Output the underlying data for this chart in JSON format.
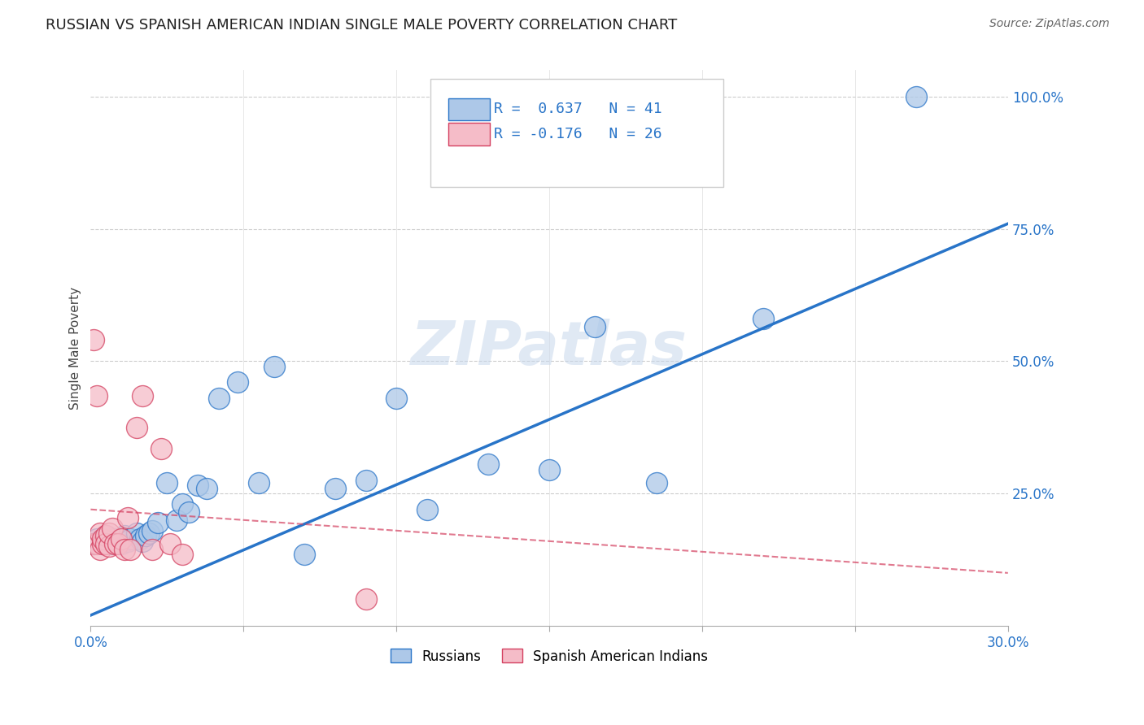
{
  "title": "RUSSIAN VS SPANISH AMERICAN INDIAN SINGLE MALE POVERTY CORRELATION CHART",
  "source": "Source: ZipAtlas.com",
  "ylabel": "Single Male Poverty",
  "x_range": [
    0.0,
    0.3
  ],
  "y_range": [
    0.0,
    1.05
  ],
  "russian_R": 0.637,
  "russian_N": 41,
  "spanish_R": -0.176,
  "spanish_N": 26,
  "russian_color": "#adc8e8",
  "russian_line_color": "#2874c8",
  "spanish_color": "#f5bcc8",
  "spanish_line_color": "#d44060",
  "watermark": "ZIPatlas",
  "russian_points_x": [
    0.001,
    0.002,
    0.003,
    0.004,
    0.005,
    0.006,
    0.007,
    0.008,
    0.009,
    0.01,
    0.011,
    0.012,
    0.013,
    0.015,
    0.016,
    0.017,
    0.018,
    0.019,
    0.02,
    0.022,
    0.025,
    0.028,
    0.03,
    0.032,
    0.035,
    0.038,
    0.042,
    0.048,
    0.055,
    0.06,
    0.07,
    0.08,
    0.09,
    0.1,
    0.11,
    0.13,
    0.15,
    0.165,
    0.185,
    0.22,
    0.27
  ],
  "russian_points_y": [
    0.155,
    0.165,
    0.16,
    0.155,
    0.17,
    0.16,
    0.155,
    0.165,
    0.16,
    0.155,
    0.17,
    0.16,
    0.165,
    0.175,
    0.165,
    0.16,
    0.17,
    0.175,
    0.18,
    0.195,
    0.27,
    0.2,
    0.23,
    0.215,
    0.265,
    0.26,
    0.43,
    0.46,
    0.27,
    0.49,
    0.135,
    0.26,
    0.275,
    0.43,
    0.22,
    0.305,
    0.295,
    0.565,
    0.27,
    0.58,
    1.0
  ],
  "spanish_points_x": [
    0.001,
    0.001,
    0.002,
    0.002,
    0.003,
    0.003,
    0.004,
    0.004,
    0.005,
    0.005,
    0.006,
    0.006,
    0.007,
    0.008,
    0.009,
    0.01,
    0.011,
    0.012,
    0.013,
    0.015,
    0.017,
    0.02,
    0.023,
    0.026,
    0.03,
    0.09
  ],
  "spanish_points_y": [
    0.54,
    0.155,
    0.435,
    0.155,
    0.175,
    0.145,
    0.155,
    0.165,
    0.17,
    0.155,
    0.15,
    0.175,
    0.185,
    0.155,
    0.155,
    0.165,
    0.145,
    0.205,
    0.145,
    0.375,
    0.435,
    0.145,
    0.335,
    0.155,
    0.135,
    0.05
  ],
  "russian_line_x": [
    0.0,
    0.3
  ],
  "russian_line_y": [
    0.02,
    0.76
  ],
  "spanish_line_x": [
    0.0,
    0.3
  ],
  "spanish_line_y": [
    0.22,
    0.1
  ]
}
